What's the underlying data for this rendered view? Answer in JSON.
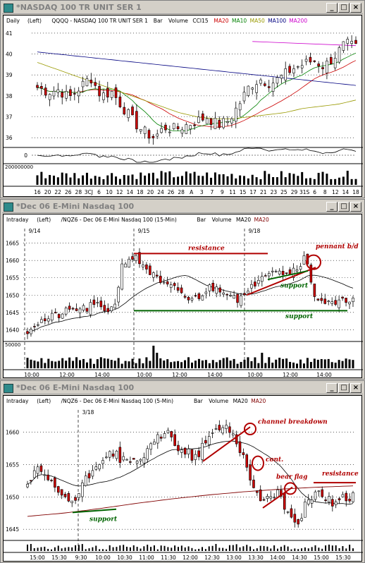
{
  "windows": [
    {
      "title": "*NASDAQ 100 TR UNIT SER 1",
      "header": [
        "Daily",
        "(Left)",
        "QQQQ - NASDAQ 100 TR UNIT SER 1",
        "Bar",
        "Volume",
        "CCI15",
        "MA20",
        "MA10",
        "MA50",
        "MA100",
        "MA200"
      ],
      "header_colors": [
        "#000000",
        "#000000",
        "#000000",
        "#000000",
        "#000000",
        "#000000",
        "#cc0000",
        "#008000",
        "#999900",
        "#000080",
        "#cc00cc"
      ],
      "controls": [
        "_",
        "□",
        "×"
      ]
    },
    {
      "title": "*Dec 06  E-Mini Nasdaq 100",
      "header": [
        "Intraday",
        "(Left)",
        "/NQZ6 - Dec 06  E-Mini Nasdaq 100 (15-Min)",
        "Bar",
        "Volume",
        "MA20",
        "MA20"
      ],
      "header_colors": [
        "#000000",
        "#000000",
        "#000000",
        "#000000",
        "#000000",
        "#000000",
        "#800000"
      ],
      "controls": [
        "_",
        "□",
        "×"
      ]
    },
    {
      "title": "*Dec 06  E-Mini Nasdaq 100",
      "header": [
        "Intraday",
        "(Left)",
        "/NQZ6 - Dec 06  E-Mini Nasdaq 100 (5-Min)",
        "Bar",
        "Volume",
        "MA20",
        "MA20"
      ],
      "header_colors": [
        "#000000",
        "#000000",
        "#000000",
        "#000000",
        "#000000",
        "#000000",
        "#800000"
      ],
      "controls": [
        "_",
        "□",
        "×"
      ]
    }
  ],
  "chart_data": [
    {
      "type": "candlestick",
      "y_ticks": [
        "41",
        "40",
        "39",
        "38",
        "37",
        "36"
      ],
      "ylim": [
        35.6,
        41.1
      ],
      "x_ticks": [
        "16",
        "20",
        "22",
        "26",
        "28",
        "3CJ",
        "6",
        "10",
        "12",
        "14",
        "18",
        "20",
        "24",
        "26",
        "28",
        "A",
        "3",
        "7",
        "9",
        "11",
        "15",
        "17",
        "21",
        "23",
        "25",
        "29",
        "31S",
        "6",
        "8",
        "12",
        "14",
        "18"
      ],
      "cci_ticks": [
        "0"
      ],
      "volume_ticks": [
        "200000000"
      ],
      "colors": {
        "up": "#ffffff",
        "down": "#cc0000",
        "ma20": "#cc0000",
        "ma10": "#008000",
        "ma50": "#999900",
        "ma100": "#000080",
        "ma200": "#cc00cc"
      }
    },
    {
      "type": "candlestick",
      "y_ticks": [
        "1665",
        "1660",
        "1655",
        "1650",
        "1645",
        "1640"
      ],
      "ylim": [
        1637,
        1668
      ],
      "date_labels": [
        "9/14",
        "9/15",
        "9/18"
      ],
      "x_ticks": [
        "10:00",
        "12:00",
        "14:00",
        "10:00",
        "12:00",
        "14:00",
        "10:00",
        "12:00",
        "14:00"
      ],
      "volume_ticks": [
        "50000"
      ],
      "annotations": [
        "resistance",
        "pennant b/d",
        "support",
        "support"
      ],
      "colors": {
        "up": "#ffffff",
        "down": "#cc0000",
        "annotation_red": "#b00000",
        "annotation_green": "#006400"
      }
    },
    {
      "type": "candlestick",
      "y_ticks": [
        "1660",
        "1655",
        "1650",
        "1645"
      ],
      "ylim": [
        1643.5,
        1663
      ],
      "date_labels": [
        "3/18"
      ],
      "x_ticks": [
        "15:00",
        "15:30",
        "9:30",
        "10:00",
        "10:30",
        "11:00",
        "11:30",
        "12:00",
        "12:30",
        "13:00",
        "13:30",
        "14:00",
        "14:30",
        "15:00",
        "15:30"
      ],
      "annotations": [
        "channel breakdown",
        "cont.",
        "bear flag",
        "resistance",
        "support"
      ],
      "colors": {
        "up": "#ffffff",
        "down": "#cc0000",
        "annotation_red": "#b00000",
        "annotation_green": "#006400"
      }
    }
  ]
}
